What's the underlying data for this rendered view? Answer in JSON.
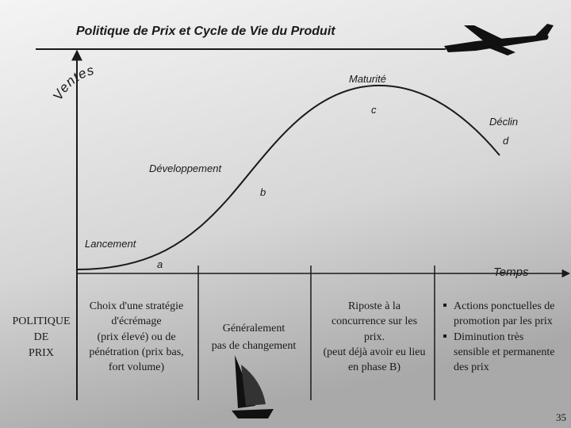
{
  "header": {
    "title": "Politique de Prix et Cycle de Vie du Produit"
  },
  "axis": {
    "y_label": "Ventes",
    "x_label": "Temps"
  },
  "phases": [
    {
      "name": "Lancement",
      "letter": "a"
    },
    {
      "name": "Développement",
      "letter": "b"
    },
    {
      "name": "Maturité",
      "letter": "c"
    },
    {
      "name": "Déclin",
      "letter": "d"
    }
  ],
  "row_label": [
    "POLITIQUE",
    "DE",
    "PRIX"
  ],
  "columns": [
    {
      "lines": [
        "Choix d'une stratégie",
        "d'écrémage",
        "(prix élevé) ou de",
        "pénétration (prix bas,",
        "fort volume)"
      ]
    },
    {
      "lines": [
        "Généralement",
        "pas de changement"
      ]
    },
    {
      "lines": [
        "Riposte à la",
        "concurrence sur les",
        "prix.",
        "(peut déjà avoir eu lieu",
        "en phase B)"
      ]
    },
    {
      "lines": [
        "Actions ponctuelles de",
        "promotion par les prix",
        "Diminution très",
        "sensible et permanente",
        "des prix"
      ]
    }
  ],
  "page_number": "35"
}
